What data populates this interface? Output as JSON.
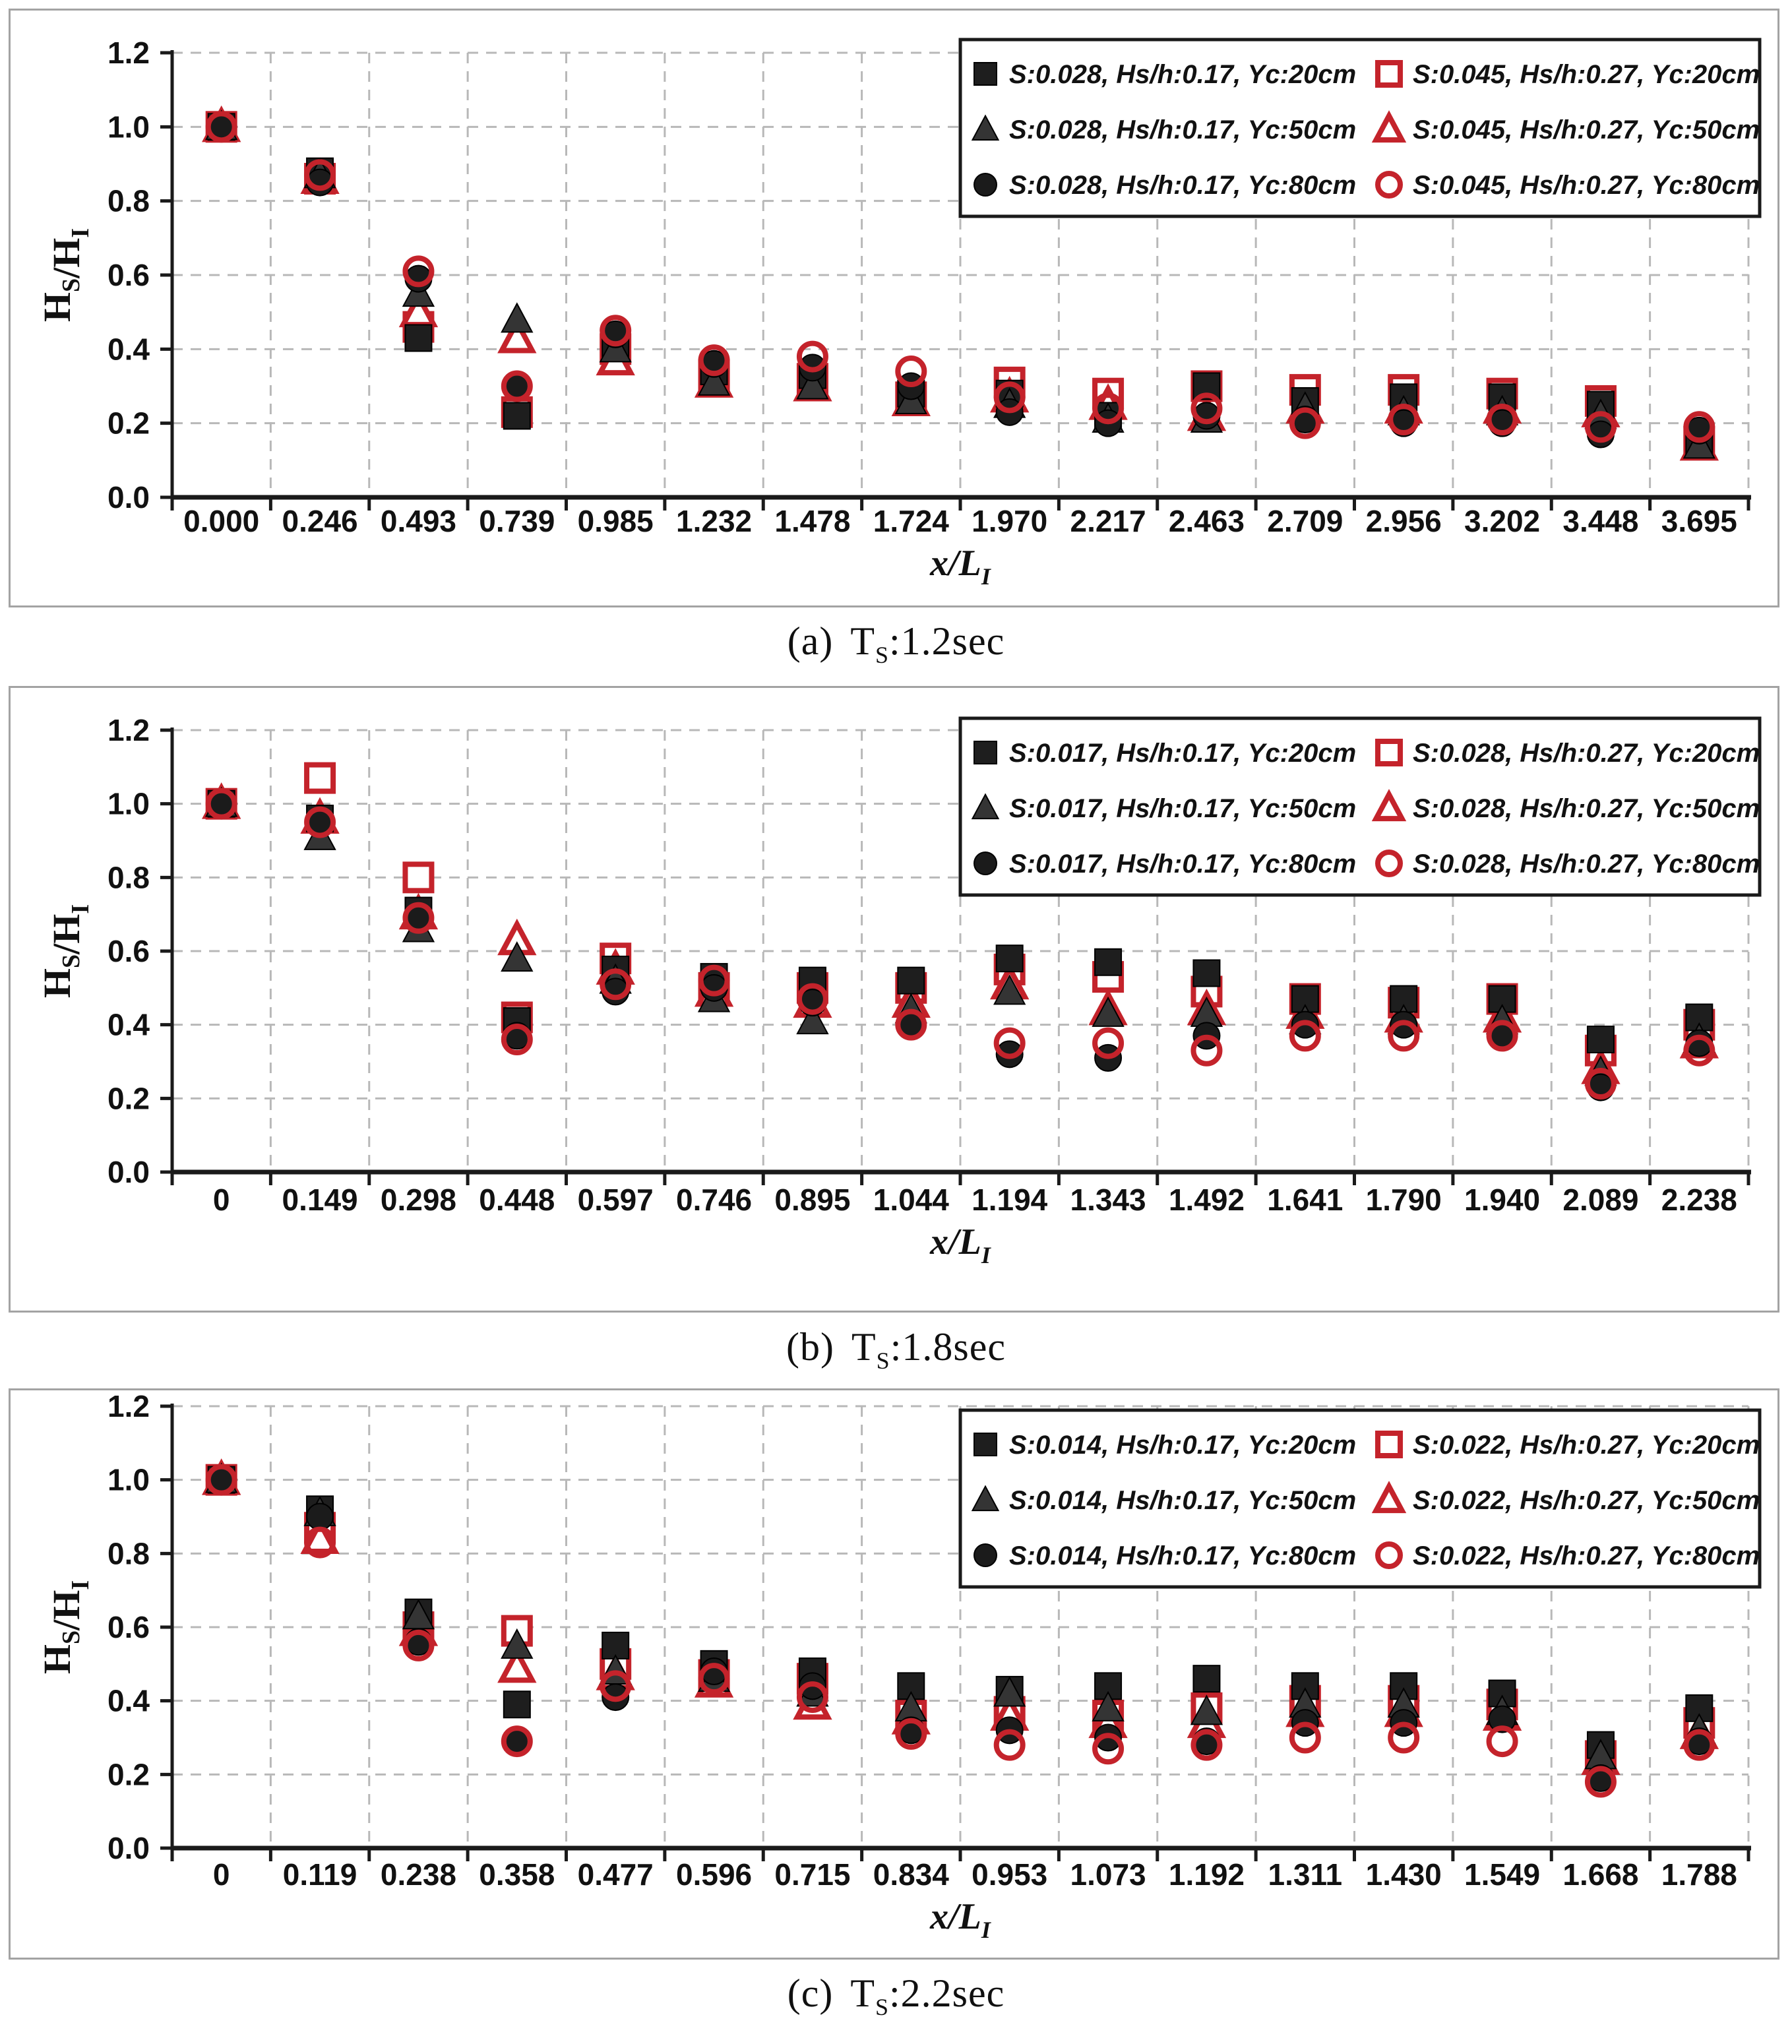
{
  "colors": {
    "black_marker": "#1e1e1e",
    "black_triangle": "#343434",
    "red_marker": "#c4232b",
    "grid": "#b8b8b8",
    "axis": "#1a1a1a",
    "panel_border": "#a3a3a3",
    "text": "#111111",
    "legend_border": "#1a1a1a",
    "background": "#ffffff"
  },
  "axes_text": {
    "ytick_labels": [
      "0.0",
      "0.2",
      "0.4",
      "0.6",
      "0.8",
      "1.0",
      "1.2"
    ],
    "yticks": [
      0,
      0.2,
      0.4,
      0.6,
      0.8,
      1.0,
      1.2
    ]
  },
  "chart_data": [
    {
      "type": "scatter",
      "title": "",
      "caption": {
        "index": "(a)",
        "symbol": "T",
        "sub": "S",
        "suffix": ":1.2sec"
      },
      "xlabel": {
        "text": "x/L",
        "sub": "I"
      },
      "ylabel": {
        "parts": [
          {
            "text": "H",
            "sub": "S"
          },
          {
            "text": "/H",
            "sub": "I"
          }
        ]
      },
      "ylim": [
        0,
        1.2
      ],
      "grid": true,
      "legend_position": "top-right",
      "categories": [
        "0.000",
        "0.246",
        "0.493",
        "0.739",
        "0.985",
        "1.232",
        "1.478",
        "1.724",
        "1.970",
        "2.217",
        "2.463",
        "2.709",
        "2.956",
        "3.202",
        "3.448",
        "3.695"
      ],
      "series": [
        {
          "name": "S:0.028, Hs/h:0.17, Yc:20cm",
          "marker": "square",
          "style": "solid",
          "color": "#1e1e1e",
          "values": [
            1.0,
            0.88,
            0.43,
            0.22,
            0.41,
            0.34,
            0.33,
            0.28,
            0.28,
            0.22,
            0.3,
            0.26,
            0.27,
            0.27,
            0.25,
            0.15
          ]
        },
        {
          "name": "S:0.028, Hs/h:0.17, Yc:50cm",
          "marker": "triangle",
          "style": "solid",
          "color": "#343434",
          "values": [
            1.0,
            0.87,
            0.55,
            0.48,
            0.4,
            0.31,
            0.3,
            0.26,
            0.25,
            0.21,
            0.21,
            0.24,
            0.23,
            0.23,
            0.22,
            0.14
          ]
        },
        {
          "name": "S:0.028, Hs/h:0.17, Yc:80cm",
          "marker": "circle",
          "style": "solid",
          "color": "#1b1b1b",
          "values": [
            1.0,
            0.85,
            0.59,
            0.3,
            0.44,
            0.36,
            0.35,
            0.3,
            0.23,
            0.2,
            0.22,
            0.21,
            0.2,
            0.2,
            0.17,
            0.18
          ]
        },
        {
          "name": "S:0.045, Hs/h:0.27, Yc:20cm",
          "marker": "square",
          "style": "open",
          "color": "#c4232b",
          "values": [
            1.0,
            0.86,
            0.46,
            0.23,
            0.4,
            0.33,
            0.32,
            0.27,
            0.31,
            0.28,
            0.3,
            0.29,
            0.29,
            0.28,
            0.26,
            0.15
          ]
        },
        {
          "name": "S:0.045, Hs/h:0.27, Yc:50cm",
          "marker": "triangle",
          "style": "open",
          "color": "#c4232b",
          "values": [
            1.0,
            0.86,
            0.5,
            0.43,
            0.37,
            0.31,
            0.3,
            0.26,
            0.27,
            0.25,
            0.22,
            0.24,
            0.24,
            0.24,
            0.23,
            0.14
          ]
        },
        {
          "name": "S:0.045, Hs/h:0.27, Yc:80cm",
          "marker": "circle",
          "style": "open",
          "color": "#c4232b",
          "values": [
            1.0,
            0.87,
            0.61,
            0.3,
            0.45,
            0.37,
            0.38,
            0.34,
            0.27,
            0.24,
            0.24,
            0.2,
            0.21,
            0.21,
            0.19,
            0.19
          ]
        }
      ]
    },
    {
      "type": "scatter",
      "title": "",
      "caption": {
        "index": "(b)",
        "symbol": "T",
        "sub": "S",
        "suffix": ":1.8sec"
      },
      "xlabel": {
        "text": "x/L",
        "sub": "I"
      },
      "ylabel": {
        "parts": [
          {
            "text": "H",
            "sub": "S"
          },
          {
            "text": "/H",
            "sub": "I"
          }
        ]
      },
      "ylim": [
        0,
        1.2
      ],
      "grid": true,
      "legend_position": "top-right",
      "categories": [
        "0",
        "0.149",
        "0.298",
        "0.448",
        "0.597",
        "0.746",
        "0.895",
        "1.044",
        "1.194",
        "1.343",
        "1.492",
        "1.641",
        "1.790",
        "1.940",
        "2.089",
        "2.238"
      ],
      "series": [
        {
          "name": "S:0.017, Hs/h:0.17, Yc:20cm",
          "marker": "square",
          "style": "solid",
          "color": "#1e1e1e",
          "values": [
            1.0,
            0.96,
            0.71,
            0.41,
            0.55,
            0.53,
            0.52,
            0.52,
            0.58,
            0.57,
            0.54,
            0.47,
            0.47,
            0.47,
            0.36,
            0.42
          ]
        },
        {
          "name": "S:0.017, Hs/h:0.17, Yc:50cm",
          "marker": "triangle",
          "style": "solid",
          "color": "#343434",
          "values": [
            1.0,
            0.91,
            0.66,
            0.58,
            0.52,
            0.47,
            0.41,
            0.44,
            0.49,
            0.43,
            0.43,
            0.41,
            0.41,
            0.41,
            0.27,
            0.36
          ]
        },
        {
          "name": "S:0.017, Hs/h:0.17, Yc:80cm",
          "marker": "circle",
          "style": "solid",
          "color": "#1b1b1b",
          "values": [
            1.0,
            0.95,
            0.69,
            0.37,
            0.49,
            0.5,
            0.46,
            0.4,
            0.32,
            0.31,
            0.37,
            0.4,
            0.4,
            0.37,
            0.23,
            0.35
          ]
        },
        {
          "name": "S:0.028, Hs/h:0.27, Yc:20cm",
          "marker": "square",
          "style": "open",
          "color": "#c4232b",
          "values": [
            1.0,
            1.07,
            0.8,
            0.42,
            0.58,
            0.5,
            0.5,
            0.5,
            0.55,
            0.53,
            0.49,
            0.47,
            0.46,
            0.47,
            0.33,
            0.4
          ]
        },
        {
          "name": "S:0.028, Hs/h:0.27, Yc:50cm",
          "marker": "triangle",
          "style": "open",
          "color": "#c4232b",
          "values": [
            1.0,
            0.96,
            0.7,
            0.63,
            0.55,
            0.49,
            0.46,
            0.46,
            0.51,
            0.44,
            0.44,
            0.43,
            0.42,
            0.42,
            0.28,
            0.35
          ]
        },
        {
          "name": "S:0.028, Hs/h:0.27, Yc:80cm",
          "marker": "circle",
          "style": "open",
          "color": "#c4232b",
          "values": [
            1.0,
            0.95,
            0.69,
            0.36,
            0.51,
            0.52,
            0.47,
            0.4,
            0.35,
            0.35,
            0.33,
            0.37,
            0.37,
            0.37,
            0.24,
            0.33
          ]
        }
      ]
    },
    {
      "type": "scatter",
      "title": "",
      "caption": {
        "index": "(c)",
        "symbol": "T",
        "sub": "S",
        "suffix": ":2.2sec"
      },
      "xlabel": {
        "text": "x/L",
        "sub": "I"
      },
      "ylabel": {
        "parts": [
          {
            "text": "H",
            "sub": "S"
          },
          {
            "text": "/H",
            "sub": "I"
          }
        ]
      },
      "ylim": [
        0,
        1.2
      ],
      "grid": true,
      "legend_position": "top-right",
      "categories": [
        "0",
        "0.119",
        "0.238",
        "0.358",
        "0.477",
        "0.596",
        "0.715",
        "0.834",
        "0.953",
        "1.073",
        "1.192",
        "1.311",
        "1.430",
        "1.549",
        "1.668",
        "1.788"
      ],
      "series": [
        {
          "name": "S:0.014, Hs/h:0.17, Yc:20cm",
          "marker": "square",
          "style": "solid",
          "color": "#1e1e1e",
          "values": [
            1.0,
            0.92,
            0.64,
            0.39,
            0.55,
            0.5,
            0.48,
            0.44,
            0.43,
            0.44,
            0.46,
            0.44,
            0.44,
            0.42,
            0.28,
            0.38
          ]
        },
        {
          "name": "S:0.014, Hs/h:0.17, Yc:50cm",
          "marker": "triangle",
          "style": "solid",
          "color": "#343434",
          "values": [
            1.0,
            0.91,
            0.63,
            0.55,
            0.48,
            0.46,
            0.42,
            0.38,
            0.42,
            0.38,
            0.37,
            0.39,
            0.39,
            0.37,
            0.25,
            0.32
          ]
        },
        {
          "name": "S:0.014, Hs/h:0.17, Yc:80cm",
          "marker": "circle",
          "style": "solid",
          "color": "#1b1b1b",
          "values": [
            1.0,
            0.9,
            0.56,
            0.29,
            0.41,
            0.48,
            0.44,
            0.32,
            0.32,
            0.3,
            0.29,
            0.34,
            0.34,
            0.35,
            0.19,
            0.29
          ]
        },
        {
          "name": "S:0.022, Hs/h:0.27, Yc:20cm",
          "marker": "square",
          "style": "open",
          "color": "#c4232b",
          "values": [
            1.0,
            0.87,
            0.6,
            0.59,
            0.5,
            0.47,
            0.46,
            0.36,
            0.37,
            0.36,
            0.38,
            0.4,
            0.4,
            0.39,
            0.25,
            0.34
          ]
        },
        {
          "name": "S:0.022, Hs/h:0.27, Yc:50cm",
          "marker": "triangle",
          "style": "open",
          "color": "#c4232b",
          "values": [
            1.0,
            0.84,
            0.59,
            0.49,
            0.47,
            0.45,
            0.39,
            0.35,
            0.36,
            0.34,
            0.34,
            0.37,
            0.37,
            0.36,
            0.24,
            0.31
          ]
        },
        {
          "name": "S:0.022, Hs/h:0.27, Yc:80cm",
          "marker": "circle",
          "style": "open",
          "color": "#c4232b",
          "values": [
            1.0,
            0.83,
            0.55,
            0.29,
            0.44,
            0.46,
            0.41,
            0.31,
            0.28,
            0.27,
            0.28,
            0.3,
            0.3,
            0.29,
            0.18,
            0.28
          ]
        }
      ]
    }
  ]
}
